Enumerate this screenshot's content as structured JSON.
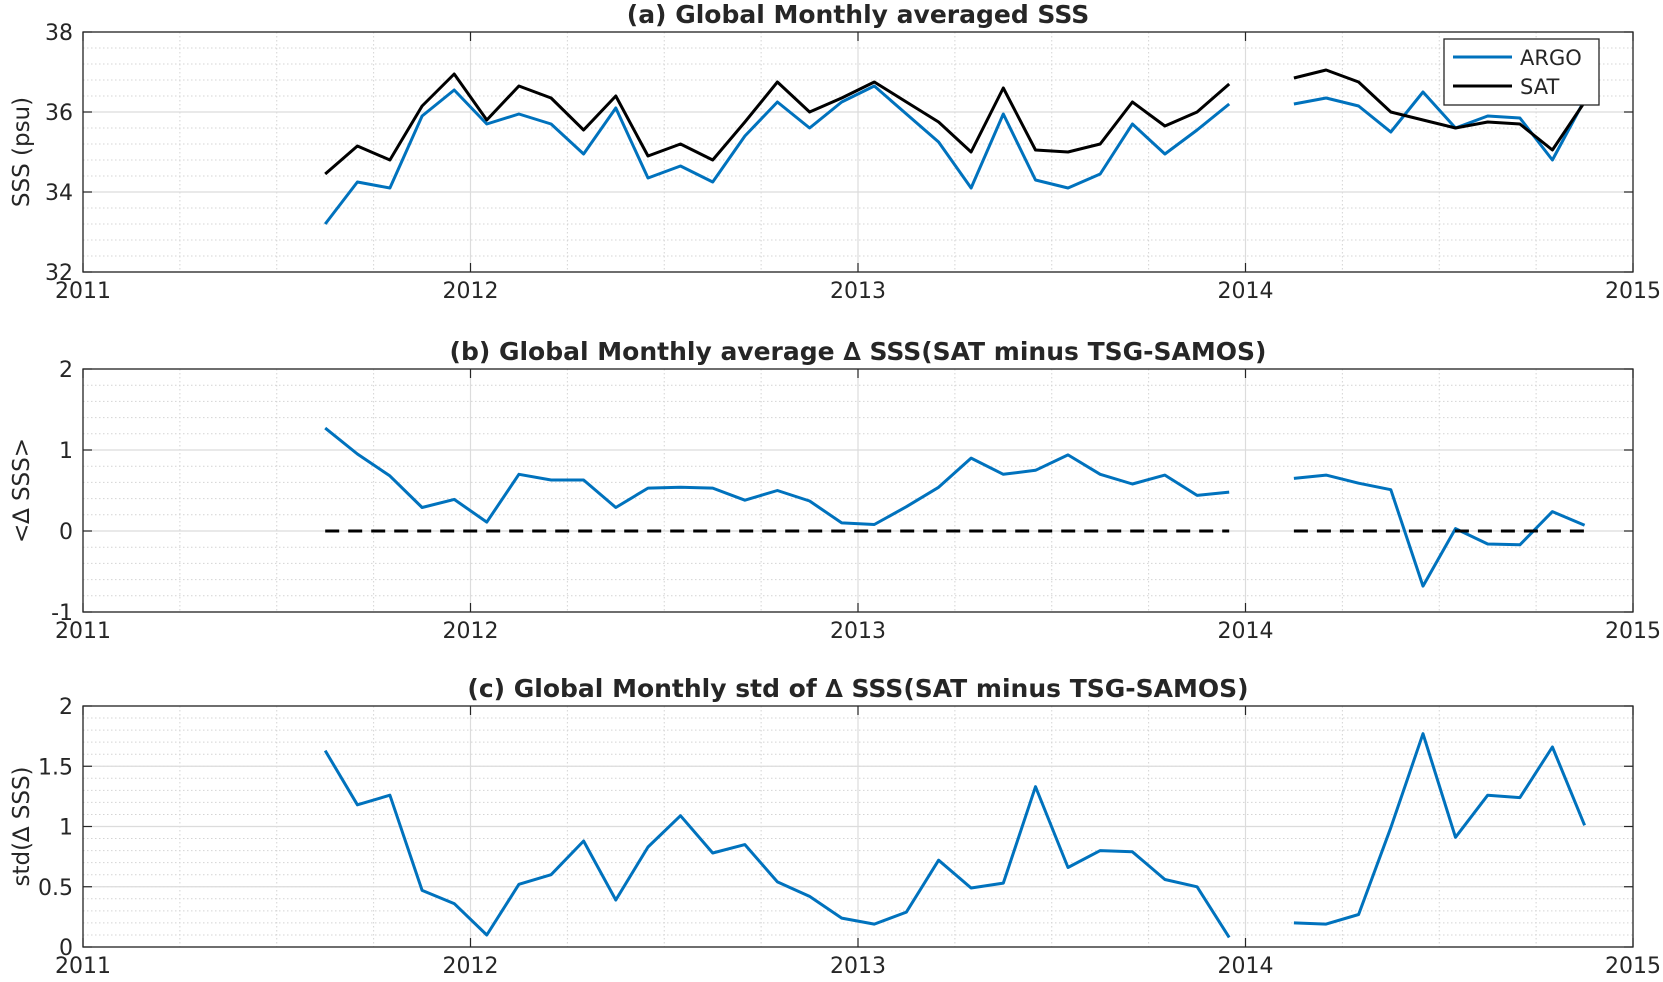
{
  "chart_data": [
    {
      "type": "line",
      "title": "(a) Global Monthly averaged SSS",
      "xlabel": "",
      "ylabel": "SSS (psu)",
      "xlim": [
        2011,
        2015
      ],
      "ylim": [
        32,
        38
      ],
      "xticks": [
        2011,
        2012,
        2013,
        2014,
        2015
      ],
      "yticks": [
        32,
        34,
        36,
        38
      ],
      "grid": true,
      "minor_grid": true,
      "legend_position": "top-right",
      "x": [
        2011.625,
        2011.708,
        2011.792,
        2011.875,
        2011.958,
        2012.042,
        2012.125,
        2012.208,
        2012.292,
        2012.375,
        2012.458,
        2012.542,
        2012.625,
        2012.708,
        2012.792,
        2012.875,
        2012.958,
        2013.042,
        2013.125,
        2013.208,
        2013.292,
        2013.375,
        2013.458,
        2013.542,
        2013.625,
        2013.708,
        2013.792,
        2013.875,
        2013.958,
        null,
        2014.125,
        2014.208,
        2014.292,
        2014.375,
        2014.458,
        2014.542,
        2014.625,
        2014.708,
        2014.792,
        2014.875
      ],
      "series": [
        {
          "name": "ARGO",
          "color": "#0072BD",
          "values": [
            33.2,
            34.25,
            34.1,
            35.9,
            36.55,
            35.7,
            35.95,
            35.7,
            34.95,
            36.1,
            34.35,
            34.65,
            34.25,
            35.4,
            36.25,
            35.6,
            36.25,
            36.65,
            35.95,
            35.25,
            34.1,
            35.95,
            34.3,
            34.1,
            34.45,
            35.7,
            34.95,
            35.55,
            36.2,
            null,
            36.2,
            36.35,
            36.15,
            35.5,
            36.5,
            35.6,
            35.9,
            35.85,
            34.8,
            36.3
          ]
        },
        {
          "name": "SAT",
          "color": "#000000",
          "values": [
            34.45,
            35.15,
            34.8,
            36.15,
            36.95,
            35.8,
            36.65,
            36.35,
            35.55,
            36.4,
            34.9,
            35.2,
            34.8,
            35.75,
            36.75,
            36.0,
            36.35,
            36.75,
            36.25,
            35.75,
            35.0,
            36.6,
            35.05,
            35.0,
            35.2,
            36.25,
            35.65,
            36.0,
            36.7,
            null,
            36.85,
            37.05,
            36.75,
            36.0,
            35.8,
            35.6,
            35.75,
            35.7,
            35.05,
            36.25
          ]
        }
      ]
    },
    {
      "type": "line",
      "title": "(b) Global Monthly average ∆ SSS(SAT minus TSG-SAMOS)",
      "xlabel": "",
      "ylabel": "<∆ SSS>",
      "xlim": [
        2011,
        2015
      ],
      "ylim": [
        -1,
        2
      ],
      "xticks": [
        2011,
        2012,
        2013,
        2014,
        2015
      ],
      "yticks": [
        -1,
        0,
        1,
        2
      ],
      "grid": true,
      "minor_grid": true,
      "x": [
        2011.625,
        2011.708,
        2011.792,
        2011.875,
        2011.958,
        2012.042,
        2012.125,
        2012.208,
        2012.292,
        2012.375,
        2012.458,
        2012.542,
        2012.625,
        2012.708,
        2012.792,
        2012.875,
        2012.958,
        2013.042,
        2013.125,
        2013.208,
        2013.292,
        2013.375,
        2013.458,
        2013.542,
        2013.625,
        2013.708,
        2013.792,
        2013.875,
        2013.958,
        null,
        2014.125,
        2014.208,
        2014.292,
        2014.375,
        2014.458,
        2014.542,
        2014.625,
        2014.708,
        2014.792,
        2014.875
      ],
      "series": [
        {
          "color": "#0072BD",
          "values": [
            1.27,
            0.95,
            0.68,
            0.29,
            0.39,
            0.11,
            0.7,
            0.63,
            0.63,
            0.29,
            0.53,
            0.54,
            0.53,
            0.38,
            0.5,
            0.37,
            0.1,
            0.08,
            0.3,
            0.54,
            0.9,
            0.7,
            0.75,
            0.94,
            0.7,
            0.58,
            0.69,
            0.44,
            0.48,
            null,
            0.65,
            0.69,
            0.59,
            0.51,
            -0.68,
            0.03,
            -0.16,
            -0.17,
            0.24,
            0.07
          ]
        },
        {
          "color": "#000000",
          "dashed": true,
          "values": [
            0,
            0,
            0,
            0,
            0,
            0,
            0,
            0,
            0,
            0,
            0,
            0,
            0,
            0,
            0,
            0,
            0,
            0,
            0,
            0,
            0,
            0,
            0,
            0,
            0,
            0,
            0,
            0,
            0,
            null,
            0,
            0,
            0,
            0,
            0,
            0,
            0,
            0,
            0,
            0
          ]
        }
      ]
    },
    {
      "type": "line",
      "title": "(c) Global Monthly std of ∆ SSS(SAT minus TSG-SAMOS)",
      "xlabel": "",
      "ylabel": "std(∆ SSS)",
      "xlim": [
        2011,
        2015
      ],
      "ylim": [
        0,
        2
      ],
      "xticks": [
        2011,
        2012,
        2013,
        2014,
        2015
      ],
      "yticks": [
        0,
        0.5,
        1,
        1.5,
        2
      ],
      "grid": true,
      "minor_grid": true,
      "x": [
        2011.625,
        2011.708,
        2011.792,
        2011.875,
        2011.958,
        2012.042,
        2012.125,
        2012.208,
        2012.292,
        2012.375,
        2012.458,
        2012.542,
        2012.625,
        2012.708,
        2012.792,
        2012.875,
        2012.958,
        2013.042,
        2013.125,
        2013.208,
        2013.292,
        2013.375,
        2013.458,
        2013.542,
        2013.625,
        2013.708,
        2013.792,
        2013.875,
        2013.958,
        null,
        2014.125,
        2014.208,
        2014.292,
        2014.375,
        2014.458,
        2014.542,
        2014.625,
        2014.708,
        2014.792,
        2014.875
      ],
      "series": [
        {
          "color": "#0072BD",
          "values": [
            1.63,
            1.18,
            1.26,
            0.47,
            0.36,
            0.1,
            0.52,
            0.6,
            0.88,
            0.39,
            0.83,
            1.09,
            0.78,
            0.85,
            0.54,
            0.42,
            0.24,
            0.19,
            0.29,
            0.72,
            0.49,
            0.53,
            1.33,
            0.66,
            0.8,
            0.79,
            0.56,
            0.5,
            0.08,
            null,
            0.2,
            0.19,
            0.27,
            0.99,
            1.77,
            0.91,
            1.26,
            1.24,
            1.66,
            1.01
          ]
        }
      ]
    }
  ]
}
